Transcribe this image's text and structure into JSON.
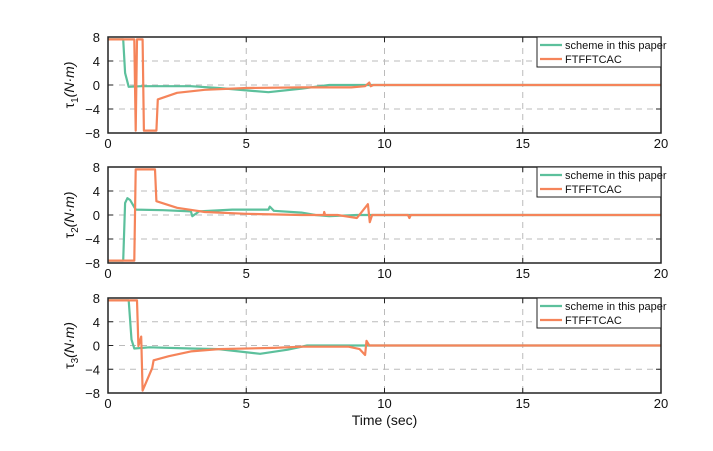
{
  "chart_data": [
    {
      "type": "line",
      "ylabel": {
        "sym": "τ",
        "sub": "1",
        "unit": "(N·m)"
      },
      "xlim": [
        0,
        20
      ],
      "ylim": [
        -8,
        8
      ],
      "xticks": [
        "0",
        "5",
        "10",
        "15",
        "20"
      ],
      "yticks": [
        "8",
        "4",
        "0",
        "−4",
        "−8"
      ],
      "grid": true,
      "legend_position": "top-right",
      "series": [
        {
          "name": "scheme in this paper",
          "color": "#5cc09c",
          "points": [
            [
              0,
              7.6
            ],
            [
              0.55,
              7.6
            ],
            [
              0.62,
              2
            ],
            [
              0.75,
              -0.3
            ],
            [
              1.2,
              -0.2
            ],
            [
              3,
              -0.2
            ],
            [
              4,
              -0.5
            ],
            [
              5,
              -0.9
            ],
            [
              5.8,
              -1.2
            ],
            [
              7,
              -0.6
            ],
            [
              8,
              0
            ],
            [
              9.4,
              0
            ],
            [
              20,
              0
            ]
          ]
        },
        {
          "name": "FTFFTCAC",
          "color": "#f5845a",
          "points": [
            [
              0,
              7.6
            ],
            [
              0.95,
              7.6
            ],
            [
              1.0,
              -7.6
            ],
            [
              1.05,
              7.6
            ],
            [
              1.25,
              7.6
            ],
            [
              1.3,
              -7.6
            ],
            [
              1.75,
              -7.6
            ],
            [
              1.8,
              -2.4
            ],
            [
              2.5,
              -1.3
            ],
            [
              3.5,
              -0.8
            ],
            [
              5,
              -0.5
            ],
            [
              7,
              -0.4
            ],
            [
              8.8,
              -0.4
            ],
            [
              9.3,
              -0.2
            ],
            [
              9.45,
              0.4
            ],
            [
              9.5,
              -0.2
            ],
            [
              9.6,
              0
            ],
            [
              20,
              0
            ]
          ]
        }
      ]
    },
    {
      "type": "line",
      "ylabel": {
        "sym": "τ",
        "sub": "2",
        "unit": "(N·m)"
      },
      "xlim": [
        0,
        20
      ],
      "ylim": [
        -8,
        8
      ],
      "xticks": [
        "0",
        "5",
        "10",
        "15",
        "20"
      ],
      "yticks": [
        "8",
        "4",
        "0",
        "−4",
        "−8"
      ],
      "grid": true,
      "legend_position": "top-right",
      "series": [
        {
          "name": "scheme in this paper",
          "color": "#5cc09c",
          "points": [
            [
              0,
              -7.6
            ],
            [
              0.55,
              -7.6
            ],
            [
              0.62,
              2
            ],
            [
              0.7,
              2.8
            ],
            [
              0.8,
              2.5
            ],
            [
              1.0,
              0.9
            ],
            [
              2,
              0.8
            ],
            [
              3,
              0.6
            ],
            [
              3.05,
              -0.2
            ],
            [
              3.3,
              0.6
            ],
            [
              4.5,
              0.9
            ],
            [
              5.8,
              0.9
            ],
            [
              5.85,
              1.4
            ],
            [
              6,
              0.7
            ],
            [
              7,
              0.4
            ],
            [
              7.5,
              0
            ],
            [
              8,
              -0.2
            ],
            [
              9,
              0
            ],
            [
              20,
              0
            ]
          ]
        },
        {
          "name": "FTFFTCAC",
          "color": "#f5845a",
          "points": [
            [
              0,
              -7.6
            ],
            [
              0.95,
              -7.6
            ],
            [
              1.0,
              7.6
            ],
            [
              1.7,
              7.6
            ],
            [
              1.75,
              2.3
            ],
            [
              2.5,
              1.2
            ],
            [
              3.5,
              0.5
            ],
            [
              5,
              0.2
            ],
            [
              7,
              0
            ],
            [
              7.8,
              0
            ],
            [
              7.82,
              0.5
            ],
            [
              7.85,
              0
            ],
            [
              8.3,
              0
            ],
            [
              9.0,
              -0.5
            ],
            [
              9.4,
              1.8
            ],
            [
              9.47,
              -1.2
            ],
            [
              9.55,
              0
            ],
            [
              10.85,
              0
            ],
            [
              10.9,
              -0.5
            ],
            [
              10.95,
              0
            ],
            [
              20,
              0
            ]
          ]
        }
      ]
    },
    {
      "type": "line",
      "ylabel": {
        "sym": "τ",
        "sub": "3",
        "unit": "(N·m)"
      },
      "xlabel": "Time (sec)",
      "xlim": [
        0,
        20
      ],
      "ylim": [
        -8,
        8
      ],
      "xticks": [
        "0",
        "5",
        "10",
        "15",
        "20"
      ],
      "yticks": [
        "8",
        "4",
        "0",
        "−4",
        "−8"
      ],
      "grid": true,
      "legend_position": "top-right",
      "series": [
        {
          "name": "scheme in this paper",
          "color": "#5cc09c",
          "points": [
            [
              0,
              7.6
            ],
            [
              0.75,
              7.6
            ],
            [
              0.85,
              1
            ],
            [
              0.95,
              -0.5
            ],
            [
              1.5,
              -0.3
            ],
            [
              3,
              -0.5
            ],
            [
              4,
              -0.6
            ],
            [
              5.5,
              -1.4
            ],
            [
              6.5,
              -0.7
            ],
            [
              7.2,
              0
            ],
            [
              9.4,
              0
            ],
            [
              20,
              0
            ]
          ]
        },
        {
          "name": "FTFFTCAC",
          "color": "#f5845a",
          "points": [
            [
              0,
              7.6
            ],
            [
              1.05,
              7.6
            ],
            [
              1.1,
              -0.1
            ],
            [
              1.2,
              1.5
            ],
            [
              1.25,
              -7.6
            ],
            [
              1.6,
              -3.8
            ],
            [
              1.65,
              -2.5
            ],
            [
              2.2,
              -1.8
            ],
            [
              3,
              -1
            ],
            [
              4,
              -0.6
            ],
            [
              6,
              -0.4
            ],
            [
              7,
              -0.2
            ],
            [
              8.7,
              -0.2
            ],
            [
              9.1,
              -0.6
            ],
            [
              9.3,
              -1.6
            ],
            [
              9.35,
              0.8
            ],
            [
              9.45,
              0
            ],
            [
              20,
              0
            ]
          ]
        }
      ]
    }
  ]
}
